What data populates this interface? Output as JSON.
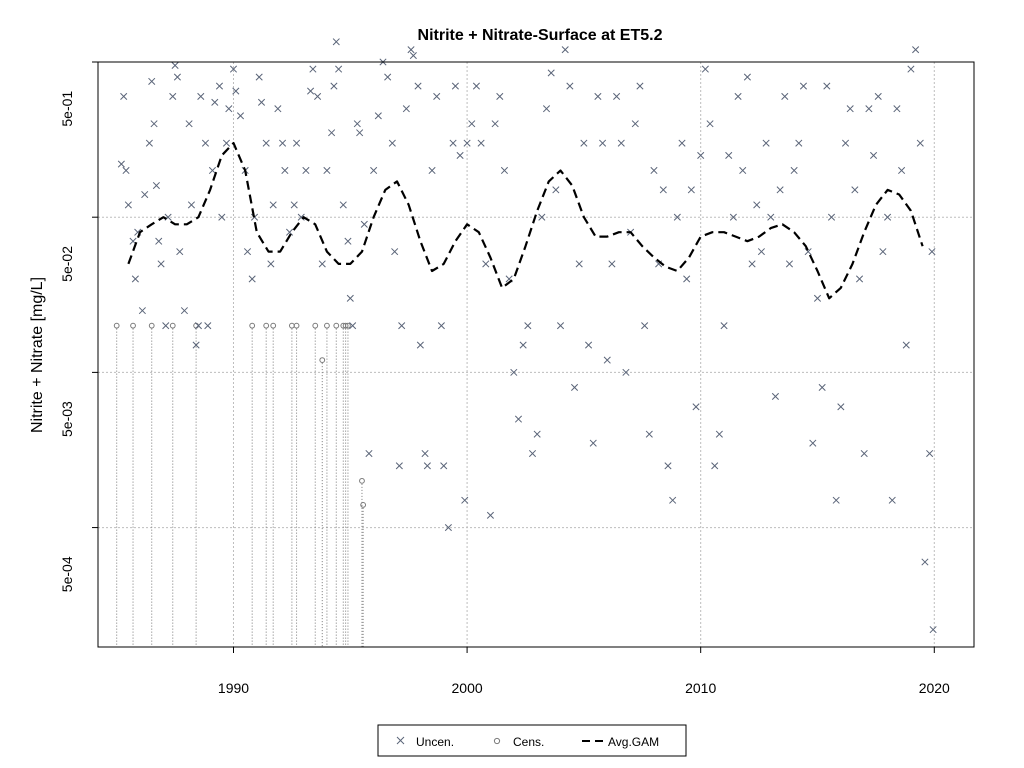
{
  "chart_data": {
    "type": "scatter",
    "title": "Nitrite + Nitrate-Surface at ET5.2",
    "xlabel": "",
    "ylabel": "Nitrite + Nitrate [mg/L]",
    "y_scale": "log",
    "xlim": [
      1984.2,
      2021.7
    ],
    "ylim": [
      0.00017,
      1.0
    ],
    "grid": true,
    "x_ticks": [
      1990,
      2000,
      2010,
      2020
    ],
    "x_tick_labels": [
      "1990",
      "2000",
      "2010",
      "2020"
    ],
    "y_ticks": [
      0.0005,
      0.005,
      0.05,
      0.5
    ],
    "y_tick_labels": [
      "5e-04",
      "5e-03",
      "5e-02",
      "5e-01"
    ],
    "y_gridlines": [
      0.001,
      0.01,
      0.1,
      1.0
    ],
    "legend_position": "bottom-center",
    "legend": [
      {
        "name": "Uncen.",
        "marker": "x"
      },
      {
        "name": "Cens.",
        "marker": "o"
      },
      {
        "name": "Avg.GAM",
        "marker": "dashed-line"
      }
    ],
    "colors": {
      "uncen": "#5a6478",
      "cens": "#7a7a7a",
      "gam": "#000000",
      "grid": "#bdbdbd"
    },
    "series": [
      {
        "name": "Uncen.",
        "marker": "x",
        "points": [
          [
            1985.2,
            0.22
          ],
          [
            1985.3,
            0.6
          ],
          [
            1985.4,
            0.2
          ],
          [
            1985.5,
            0.12
          ],
          [
            1985.7,
            0.07
          ],
          [
            1985.8,
            0.04
          ],
          [
            1985.9,
            0.08
          ],
          [
            1986.1,
            0.025
          ],
          [
            1986.2,
            0.14
          ],
          [
            1986.4,
            0.3
          ],
          [
            1986.5,
            0.75
          ],
          [
            1986.6,
            0.4
          ],
          [
            1986.7,
            0.16
          ],
          [
            1986.8,
            0.07
          ],
          [
            1986.9,
            0.05
          ],
          [
            1987.1,
            0.02
          ],
          [
            1987.2,
            0.1
          ],
          [
            1987.4,
            0.6
          ],
          [
            1987.5,
            0.95
          ],
          [
            1987.6,
            0.8
          ],
          [
            1987.7,
            0.06
          ],
          [
            1987.9,
            0.025
          ],
          [
            1988.1,
            0.4
          ],
          [
            1988.2,
            0.12
          ],
          [
            1988.4,
            0.015
          ],
          [
            1988.5,
            0.02
          ],
          [
            1988.6,
            0.6
          ],
          [
            1988.8,
            0.3
          ],
          [
            1988.9,
            0.02
          ],
          [
            1989.1,
            0.2
          ],
          [
            1989.2,
            0.55
          ],
          [
            1989.4,
            0.7
          ],
          [
            1989.5,
            0.1
          ],
          [
            1989.7,
            0.3
          ],
          [
            1989.8,
            0.5
          ],
          [
            1990.0,
            0.9
          ],
          [
            1990.1,
            0.65
          ],
          [
            1990.3,
            0.45
          ],
          [
            1990.5,
            0.2
          ],
          [
            1990.6,
            0.06
          ],
          [
            1990.8,
            0.04
          ],
          [
            1990.9,
            0.1
          ],
          [
            1991.1,
            0.8
          ],
          [
            1991.2,
            0.55
          ],
          [
            1991.4,
            0.3
          ],
          [
            1991.6,
            0.05
          ],
          [
            1991.7,
            0.12
          ],
          [
            1991.9,
            0.5
          ],
          [
            1992.1,
            0.3
          ],
          [
            1992.2,
            0.2
          ],
          [
            1992.4,
            0.08
          ],
          [
            1992.6,
            0.12
          ],
          [
            1992.7,
            0.3
          ],
          [
            1992.9,
            0.1
          ],
          [
            1993.1,
            0.2
          ],
          [
            1993.3,
            0.65
          ],
          [
            1993.4,
            0.9
          ],
          [
            1993.6,
            0.6
          ],
          [
            1993.8,
            0.05
          ],
          [
            1994.0,
            0.2
          ],
          [
            1994.2,
            0.35
          ],
          [
            1994.3,
            0.7
          ],
          [
            1994.4,
            1.35
          ],
          [
            1994.5,
            0.9
          ],
          [
            1994.7,
            0.12
          ],
          [
            1994.9,
            0.07
          ],
          [
            1995.0,
            0.03
          ],
          [
            1995.1,
            0.02
          ],
          [
            1995.3,
            0.4
          ],
          [
            1995.4,
            0.35
          ],
          [
            1995.6,
            0.09
          ],
          [
            1995.8,
            0.003
          ],
          [
            1996.0,
            0.2
          ],
          [
            1996.2,
            0.45
          ],
          [
            1996.4,
            1.0
          ],
          [
            1996.6,
            0.8
          ],
          [
            1996.8,
            0.3
          ],
          [
            1996.9,
            0.06
          ],
          [
            1997.1,
            0.0025
          ],
          [
            1997.2,
            0.02
          ],
          [
            1997.4,
            0.5
          ],
          [
            1997.6,
            1.2
          ],
          [
            1997.7,
            1.1
          ],
          [
            1997.9,
            0.7
          ],
          [
            1998.0,
            0.015
          ],
          [
            1998.2,
            0.003
          ],
          [
            1998.3,
            0.0025
          ],
          [
            1998.5,
            0.2
          ],
          [
            1998.7,
            0.6
          ],
          [
            1998.9,
            0.02
          ],
          [
            1999.0,
            0.0025
          ],
          [
            1999.2,
            0.001
          ],
          [
            1999.4,
            0.3
          ],
          [
            1999.5,
            0.7
          ],
          [
            1999.7,
            0.25
          ],
          [
            1999.9,
            0.0015
          ],
          [
            2000.0,
            0.3
          ],
          [
            2000.2,
            0.4
          ],
          [
            2000.4,
            0.7
          ],
          [
            2000.6,
            0.3
          ],
          [
            2000.8,
            0.05
          ],
          [
            2001.0,
            0.0012
          ],
          [
            2001.2,
            0.4
          ],
          [
            2001.4,
            0.6
          ],
          [
            2001.6,
            0.2
          ],
          [
            2001.8,
            0.04
          ],
          [
            2002.0,
            0.01
          ],
          [
            2002.2,
            0.005
          ],
          [
            2002.4,
            0.015
          ],
          [
            2002.6,
            0.02
          ],
          [
            2002.8,
            0.003
          ],
          [
            2003.0,
            0.004
          ],
          [
            2003.2,
            0.1
          ],
          [
            2003.4,
            0.5
          ],
          [
            2003.6,
            0.85
          ],
          [
            2003.8,
            0.15
          ],
          [
            2004.0,
            0.02
          ],
          [
            2004.2,
            1.2
          ],
          [
            2004.4,
            0.7
          ],
          [
            2004.6,
            0.008
          ],
          [
            2004.8,
            0.05
          ],
          [
            2005.0,
            0.3
          ],
          [
            2005.2,
            0.015
          ],
          [
            2005.4,
            0.0035
          ],
          [
            2005.6,
            0.6
          ],
          [
            2005.8,
            0.3
          ],
          [
            2006.0,
            0.012
          ],
          [
            2006.2,
            0.05
          ],
          [
            2006.4,
            0.6
          ],
          [
            2006.6,
            0.3
          ],
          [
            2006.8,
            0.01
          ],
          [
            2007.0,
            0.08
          ],
          [
            2007.2,
            0.4
          ],
          [
            2007.4,
            0.7
          ],
          [
            2007.6,
            0.02
          ],
          [
            2007.8,
            0.004
          ],
          [
            2008.0,
            0.2
          ],
          [
            2008.2,
            0.05
          ],
          [
            2008.4,
            0.15
          ],
          [
            2008.6,
            0.0025
          ],
          [
            2008.8,
            0.0015
          ],
          [
            2009.0,
            0.1
          ],
          [
            2009.2,
            0.3
          ],
          [
            2009.4,
            0.04
          ],
          [
            2009.6,
            0.15
          ],
          [
            2009.8,
            0.006
          ],
          [
            2010.0,
            0.25
          ],
          [
            2010.2,
            0.9
          ],
          [
            2010.4,
            0.4
          ],
          [
            2010.6,
            0.0025
          ],
          [
            2010.8,
            0.004
          ],
          [
            2011.0,
            0.02
          ],
          [
            2011.2,
            0.25
          ],
          [
            2011.4,
            0.1
          ],
          [
            2011.6,
            0.6
          ],
          [
            2011.8,
            0.2
          ],
          [
            2012.0,
            0.8
          ],
          [
            2012.2,
            0.05
          ],
          [
            2012.4,
            0.12
          ],
          [
            2012.6,
            0.06
          ],
          [
            2012.8,
            0.3
          ],
          [
            2013.0,
            0.1
          ],
          [
            2013.2,
            0.007
          ],
          [
            2013.4,
            0.15
          ],
          [
            2013.6,
            0.6
          ],
          [
            2013.8,
            0.05
          ],
          [
            2014.0,
            0.2
          ],
          [
            2014.2,
            0.3
          ],
          [
            2014.4,
            0.7
          ],
          [
            2014.6,
            0.06
          ],
          [
            2014.8,
            0.0035
          ],
          [
            2015.0,
            0.03
          ],
          [
            2015.2,
            0.008
          ],
          [
            2015.4,
            0.7
          ],
          [
            2015.6,
            0.1
          ],
          [
            2015.8,
            0.0015
          ],
          [
            2016.0,
            0.006
          ],
          [
            2016.2,
            0.3
          ],
          [
            2016.4,
            0.5
          ],
          [
            2016.6,
            0.15
          ],
          [
            2016.8,
            0.04
          ],
          [
            2017.0,
            0.003
          ],
          [
            2017.2,
            0.5
          ],
          [
            2017.4,
            0.25
          ],
          [
            2017.6,
            0.6
          ],
          [
            2017.8,
            0.06
          ],
          [
            2018.0,
            0.1
          ],
          [
            2018.2,
            0.0015
          ],
          [
            2018.4,
            0.5
          ],
          [
            2018.6,
            0.2
          ],
          [
            2018.8,
            0.015
          ],
          [
            2019.0,
            0.9
          ],
          [
            2019.2,
            1.2
          ],
          [
            2019.4,
            0.3
          ],
          [
            2019.6,
            0.0006
          ],
          [
            2019.8,
            0.003
          ],
          [
            2019.9,
            0.06
          ],
          [
            2019.95,
            0.00022
          ]
        ]
      },
      {
        "name": "Cens.",
        "marker": "o",
        "points": [
          [
            1985.0,
            0.02
          ],
          [
            1985.7,
            0.02
          ],
          [
            1986.5,
            0.02
          ],
          [
            1987.4,
            0.02
          ],
          [
            1988.4,
            0.02
          ],
          [
            1990.8,
            0.02
          ],
          [
            1991.4,
            0.02
          ],
          [
            1991.7,
            0.02
          ],
          [
            1992.5,
            0.02
          ],
          [
            1992.7,
            0.02
          ],
          [
            1993.5,
            0.02
          ],
          [
            1993.8,
            0.012
          ],
          [
            1994.0,
            0.02
          ],
          [
            1994.4,
            0.02
          ],
          [
            1994.7,
            0.02
          ],
          [
            1994.8,
            0.02
          ],
          [
            1994.9,
            0.02
          ],
          [
            1995.5,
            0.002
          ],
          [
            1995.55,
            0.0014
          ]
        ]
      },
      {
        "name": "Avg.GAM",
        "marker": "dashed-line",
        "points": [
          [
            1985.5,
            0.05
          ],
          [
            1986.0,
            0.08
          ],
          [
            1986.5,
            0.09
          ],
          [
            1987.0,
            0.1
          ],
          [
            1987.5,
            0.09
          ],
          [
            1988.0,
            0.09
          ],
          [
            1988.5,
            0.1
          ],
          [
            1989.0,
            0.15
          ],
          [
            1989.5,
            0.25
          ],
          [
            1990.0,
            0.3
          ],
          [
            1990.5,
            0.2
          ],
          [
            1991.0,
            0.08
          ],
          [
            1991.5,
            0.06
          ],
          [
            1992.0,
            0.06
          ],
          [
            1992.5,
            0.08
          ],
          [
            1993.0,
            0.1
          ],
          [
            1993.5,
            0.09
          ],
          [
            1994.0,
            0.06
          ],
          [
            1994.5,
            0.05
          ],
          [
            1995.0,
            0.05
          ],
          [
            1995.5,
            0.06
          ],
          [
            1996.0,
            0.1
          ],
          [
            1996.5,
            0.15
          ],
          [
            1997.0,
            0.17
          ],
          [
            1997.5,
            0.12
          ],
          [
            1998.0,
            0.07
          ],
          [
            1998.5,
            0.045
          ],
          [
            1999.0,
            0.05
          ],
          [
            1999.5,
            0.07
          ],
          [
            2000.0,
            0.09
          ],
          [
            2000.5,
            0.08
          ],
          [
            2001.0,
            0.055
          ],
          [
            2001.5,
            0.035
          ],
          [
            2002.0,
            0.04
          ],
          [
            2002.5,
            0.065
          ],
          [
            2003.0,
            0.11
          ],
          [
            2003.5,
            0.17
          ],
          [
            2004.0,
            0.2
          ],
          [
            2004.5,
            0.16
          ],
          [
            2005.0,
            0.1
          ],
          [
            2005.5,
            0.075
          ],
          [
            2006.0,
            0.075
          ],
          [
            2006.5,
            0.08
          ],
          [
            2007.0,
            0.08
          ],
          [
            2007.5,
            0.065
          ],
          [
            2008.0,
            0.055
          ],
          [
            2008.5,
            0.048
          ],
          [
            2009.0,
            0.045
          ],
          [
            2009.5,
            0.055
          ],
          [
            2010.0,
            0.075
          ],
          [
            2010.5,
            0.08
          ],
          [
            2011.0,
            0.08
          ],
          [
            2011.5,
            0.075
          ],
          [
            2012.0,
            0.07
          ],
          [
            2012.5,
            0.075
          ],
          [
            2013.0,
            0.085
          ],
          [
            2013.5,
            0.09
          ],
          [
            2014.0,
            0.08
          ],
          [
            2014.5,
            0.065
          ],
          [
            2015.0,
            0.045
          ],
          [
            2015.5,
            0.03
          ],
          [
            2016.0,
            0.035
          ],
          [
            2016.5,
            0.05
          ],
          [
            2017.0,
            0.08
          ],
          [
            2017.5,
            0.12
          ],
          [
            2018.0,
            0.15
          ],
          [
            2018.5,
            0.14
          ],
          [
            2019.0,
            0.11
          ],
          [
            2019.5,
            0.065
          ]
        ]
      }
    ]
  }
}
